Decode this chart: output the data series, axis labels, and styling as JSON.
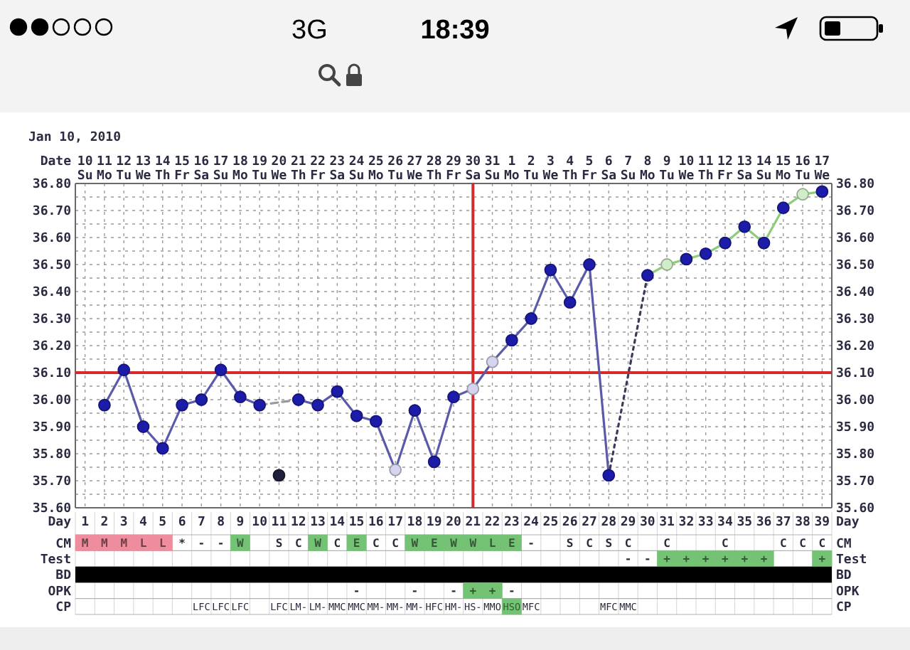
{
  "chart_data": [
    {
      "type": "line",
      "title": "Jan 10, 2010",
      "xlabel": "Day",
      "x2label": "Date",
      "xlim": [
        0.5,
        39.5
      ],
      "xticks": [
        1,
        2,
        3,
        4,
        5,
        6,
        7,
        8,
        9,
        10,
        11,
        12,
        13,
        14,
        15,
        16,
        17,
        18,
        19,
        20,
        21,
        22,
        23,
        24,
        25,
        26,
        27,
        28,
        29,
        30,
        31,
        32,
        33,
        34,
        35,
        36,
        37,
        38,
        39
      ],
      "x2lim": [
        "2010-01-09T12:00",
        "2010-02-17T12:00"
      ],
      "x2ticks": [
        {
          "value": "2010-01-10",
          "label": "10\nSu"
        },
        {
          "value": "2010-01-11",
          "label": "11\nMo"
        },
        {
          "value": "2010-01-12",
          "label": "12\nTu"
        },
        {
          "value": "2010-01-13",
          "label": "13\nWe"
        },
        {
          "value": "2010-01-14",
          "label": "14\nTh"
        },
        {
          "value": "2010-01-15",
          "label": "15\nFr"
        },
        {
          "value": "2010-01-16",
          "label": "16\nSa"
        },
        {
          "value": "2010-01-17",
          "label": "17\nSu"
        },
        {
          "value": "2010-01-18",
          "label": "18\nMo"
        },
        {
          "value": "2010-01-19",
          "label": "19\nTu"
        },
        {
          "value": "2010-01-20",
          "label": "20\nWe"
        },
        {
          "value": "2010-01-21",
          "label": "21\nTh"
        },
        {
          "value": "2010-01-22",
          "label": "22\nFr"
        },
        {
          "value": "2010-01-23",
          "label": "23\nSa"
        },
        {
          "value": "2010-01-24",
          "label": "24\nSu"
        },
        {
          "value": "2010-01-25",
          "label": "25\nMo"
        },
        {
          "value": "2010-01-26",
          "label": "26\nTu"
        },
        {
          "value": "2010-01-27",
          "label": "27\nWe"
        },
        {
          "value": "2010-01-28",
          "label": "28\nTh"
        },
        {
          "value": "2010-01-29",
          "label": "29\nFr"
        },
        {
          "value": "2010-01-30",
          "label": "30\nSa"
        },
        {
          "value": "2010-01-31",
          "label": "31\nSu"
        },
        {
          "value": "2010-02-01",
          "label": "1\nMo"
        },
        {
          "value": "2010-02-02",
          "label": "2\nTu"
        },
        {
          "value": "2010-02-03",
          "label": "3\nWe"
        },
        {
          "value": "2010-02-04",
          "label": "4\nTh"
        },
        {
          "value": "2010-02-05",
          "label": "5\nFr"
        },
        {
          "value": "2010-02-06",
          "label": "6\nSa"
        },
        {
          "value": "2010-02-07",
          "label": "7\nSu"
        },
        {
          "value": "2010-02-08",
          "label": "8\nMo"
        },
        {
          "value": "2010-02-09",
          "label": "9\nTu"
        },
        {
          "value": "2010-02-10",
          "label": "10\nWe"
        },
        {
          "value": "2010-02-11",
          "label": "11\nTh"
        },
        {
          "value": "2010-02-12",
          "label": "12\nFr"
        },
        {
          "value": "2010-02-13",
          "label": "13\nSa"
        },
        {
          "value": "2010-02-14",
          "label": "14\nSu"
        },
        {
          "value": "2010-02-15",
          "label": "15\nMo"
        },
        {
          "value": "2010-02-16",
          "label": "16\nTu"
        },
        {
          "value": "2010-02-17",
          "label": "17\nWe"
        }
      ],
      "ylim": [
        35.6,
        36.8
      ],
      "yticks": [
        {
          "value": 35.6,
          "label": "35.60"
        },
        {
          "value": 35.65,
          "label": null
        },
        {
          "value": 35.7,
          "label": "35.70"
        },
        {
          "value": 35.75,
          "label": null
        },
        {
          "value": 35.8,
          "label": "35.80"
        },
        {
          "value": 35.85,
          "label": null
        },
        {
          "value": 35.9,
          "label": "35.90"
        },
        {
          "value": 35.95,
          "label": null
        },
        {
          "value": 36.0,
          "label": "36.00"
        },
        {
          "value": 36.05,
          "label": null
        },
        {
          "value": 36.1,
          "label": "36.10"
        },
        {
          "value": 36.15,
          "label": null
        },
        {
          "value": 36.2,
          "label": "36.20"
        },
        {
          "value": 36.25,
          "label": null
        },
        {
          "value": 36.3,
          "label": "36.30"
        },
        {
          "value": 36.35,
          "label": null
        },
        {
          "value": 36.4,
          "label": "36.40"
        },
        {
          "value": 36.45,
          "label": null
        },
        {
          "value": 36.5,
          "label": "36.50"
        },
        {
          "value": 36.55,
          "label": null
        },
        {
          "value": 36.6,
          "label": "36.60"
        },
        {
          "value": 36.65,
          "label": null
        },
        {
          "value": 36.7,
          "label": "36.70"
        },
        {
          "value": 36.75,
          "label": null
        },
        {
          "value": 36.8,
          "label": "36.80"
        }
      ],
      "y2lim": [
        35.6,
        36.8
      ],
      "y2ticks": [
        {
          "value": 35.6,
          "label": "35.60"
        },
        {
          "value": 35.65,
          "label": null
        },
        {
          "value": 35.7,
          "label": "35.70"
        },
        {
          "value": 35.75,
          "label": null
        },
        {
          "value": 35.8,
          "label": "35.80"
        },
        {
          "value": 35.85,
          "label": null
        },
        {
          "value": 35.9,
          "label": "35.90"
        },
        {
          "value": 35.95,
          "label": null
        },
        {
          "value": 36.0,
          "label": "36.00"
        },
        {
          "value": 36.05,
          "label": null
        },
        {
          "value": 36.1,
          "label": "36.10"
        },
        {
          "value": 36.15,
          "label": null
        },
        {
          "value": 36.2,
          "label": "36.20"
        },
        {
          "value": 36.25,
          "label": null
        },
        {
          "value": 36.3,
          "label": "36.30"
        },
        {
          "value": 36.35,
          "label": null
        },
        {
          "value": 36.4,
          "label": "36.40"
        },
        {
          "value": 36.45,
          "label": null
        },
        {
          "value": 36.5,
          "label": "36.50"
        },
        {
          "value": 36.55,
          "label": null
        },
        {
          "value": 36.6,
          "label": "36.60"
        },
        {
          "value": 36.65,
          "label": null
        },
        {
          "value": 36.7,
          "label": "36.70"
        },
        {
          "value": 36.75,
          "label": null
        },
        {
          "value": 36.8,
          "label": "36.80"
        }
      ],
      "grid": true,
      "ref_lines": [
        {
          "axis": "y",
          "value": 36.1,
          "color": "#d42c2c"
        },
        {
          "axis": "x",
          "value": 21,
          "color": "#d42c2c"
        }
      ],
      "annotations": [
        "3G",
        "18:39"
      ],
      "series": [
        {
          "type": "line",
          "color": "#5a5aaa",
          "x": [
            2,
            3,
            4,
            5,
            6,
            7,
            8,
            9,
            10,
            11,
            12,
            13,
            14,
            15,
            16,
            17,
            18,
            19,
            20,
            21,
            22,
            23,
            24,
            25,
            26,
            27,
            28
          ],
          "values": [
            35.98,
            36.11,
            35.9,
            35.82,
            35.98,
            36.0,
            36.11,
            36.01,
            35.98,
            null,
            36.0,
            35.98,
            36.03,
            35.94,
            35.92,
            35.74,
            35.96,
            35.77,
            36.01,
            36.04,
            36.14,
            36.22,
            36.3,
            36.48,
            36.36,
            36.5,
            35.72
          ]
        },
        {
          "type": "line",
          "color": "#9a9a9a",
          "line_style": "dashed",
          "x": [
            10,
            12
          ],
          "values": [
            35.98,
            36.0
          ]
        },
        {
          "type": "line",
          "color": "#3a3a5a",
          "line_style": "dotted",
          "x": [
            28,
            30
          ],
          "values": [
            35.72,
            36.46
          ]
        },
        {
          "type": "line",
          "color": "#8ccc7a",
          "x": [
            30,
            31,
            32,
            33,
            34,
            35,
            36,
            37,
            38,
            39
          ],
          "values": [
            36.46,
            36.5,
            36.52,
            36.54,
            36.58,
            36.64,
            36.58,
            36.71,
            36.76,
            36.77
          ]
        },
        {
          "type": "scatter",
          "color": "#1c1ca8",
          "marker": "circle",
          "x": [
            2,
            3,
            4,
            5,
            6,
            7,
            8,
            9,
            10,
            12,
            13,
            14,
            15,
            16,
            18,
            19,
            20,
            23,
            24,
            25,
            26,
            27,
            28,
            30,
            32,
            33,
            34,
            35,
            36,
            37,
            39
          ],
          "values": [
            35.98,
            36.11,
            35.9,
            35.82,
            35.98,
            36.0,
            36.11,
            36.01,
            35.98,
            36.0,
            35.98,
            36.03,
            35.94,
            35.92,
            35.96,
            35.77,
            36.01,
            36.22,
            36.3,
            36.48,
            36.36,
            36.5,
            35.72,
            36.46,
            36.52,
            36.54,
            36.58,
            36.64,
            36.58,
            36.71,
            36.77
          ]
        },
        {
          "type": "scatter",
          "color": "#d4d4ee",
          "marker": "circle",
          "x": [
            17,
            21,
            22
          ],
          "values": [
            35.74,
            36.04,
            36.14
          ]
        },
        {
          "type": "scatter",
          "color": "#d0ecc8",
          "marker": "circle",
          "x": [
            31,
            38
          ],
          "values": [
            36.5,
            36.76
          ]
        },
        {
          "type": "scatter",
          "color": "#20203a",
          "marker": "circle",
          "x": [
            11
          ],
          "values": [
            35.72
          ]
        }
      ]
    },
    {
      "type": "other",
      "y_categories": [
        "CM",
        "Test",
        "BD",
        "OPK",
        "CP"
      ],
      "y2_categories": [
        "CM",
        "Test",
        "BD",
        "OPK",
        "CP"
      ],
      "cell_labels": [
        [
          "M",
          "M",
          "M",
          "L",
          "L",
          "*",
          "-",
          "-",
          "W",
          null,
          "S",
          "C",
          "W",
          "C",
          "E",
          "C",
          "C",
          "W",
          "E",
          "W",
          "W",
          "L",
          "E",
          "-",
          null,
          "S",
          "C",
          "S",
          "C",
          null,
          "C",
          null,
          null,
          "C",
          null,
          null,
          "C",
          "C",
          "C"
        ],
        [
          null,
          null,
          null,
          null,
          null,
          null,
          null,
          null,
          null,
          null,
          null,
          null,
          null,
          null,
          null,
          null,
          null,
          null,
          null,
          null,
          null,
          null,
          null,
          null,
          null,
          null,
          null,
          null,
          "-",
          "-",
          "+",
          "+",
          "+",
          "+",
          "+",
          "+",
          null,
          null,
          "+"
        ],
        [
          null,
          null,
          null,
          null,
          null,
          null,
          null,
          null,
          null,
          null,
          null,
          null,
          null,
          null,
          null,
          null,
          null,
          null,
          null,
          null,
          null,
          null,
          null,
          null,
          null,
          null,
          null,
          null,
          null,
          null,
          null,
          null,
          null,
          null,
          null,
          null,
          null,
          null,
          null
        ],
        [
          null,
          null,
          null,
          null,
          null,
          null,
          null,
          null,
          null,
          null,
          null,
          null,
          null,
          null,
          "-",
          null,
          null,
          "-",
          null,
          "-",
          "+",
          "+",
          "-",
          null,
          null,
          null,
          null,
          null,
          null,
          null,
          null,
          null,
          null,
          null,
          null,
          null,
          null,
          null,
          null
        ],
        [
          null,
          null,
          null,
          null,
          null,
          null,
          "LFC",
          "LFC",
          "LFC",
          null,
          "LFC",
          "LM-",
          "LM-",
          "MMC",
          "MMC",
          "MM-",
          "MM-",
          "MM-",
          "HFC",
          "HM-",
          "HS-",
          "MMO",
          "HSO",
          "MFC",
          null,
          null,
          null,
          "MFC",
          "MMC",
          null,
          null,
          null,
          null,
          null,
          null,
          null,
          null,
          null,
          null
        ]
      ],
      "colors": [
        [
          "#ef8d9e",
          "#ef8d9e",
          "#ef8d9e",
          "#ef8d9e",
          "#ef8d9e",
          null,
          null,
          null,
          "#74c274",
          null,
          null,
          null,
          "#74c274",
          null,
          "#74c274",
          null,
          null,
          "#74c274",
          "#74c274",
          "#74c274",
          "#74c274",
          "#74c274",
          "#74c274",
          null,
          null,
          null,
          null,
          null,
          null,
          null,
          null,
          null,
          null,
          null,
          null,
          null,
          null,
          null,
          null
        ],
        [
          null,
          null,
          null,
          null,
          null,
          null,
          null,
          null,
          null,
          null,
          null,
          null,
          null,
          null,
          null,
          null,
          null,
          null,
          null,
          null,
          null,
          null,
          null,
          null,
          null,
          null,
          null,
          null,
          null,
          null,
          "#74c274",
          "#74c274",
          "#74c274",
          "#74c274",
          "#74c274",
          "#74c274",
          null,
          null,
          "#74c274"
        ],
        [
          "#000000",
          "#000000",
          "#000000",
          "#000000",
          "#000000",
          "#000000",
          "#000000",
          "#000000",
          "#000000",
          "#000000",
          "#000000",
          "#000000",
          "#000000",
          "#000000",
          "#000000",
          "#000000",
          "#000000",
          "#000000",
          "#000000",
          "#000000",
          "#000000",
          "#000000",
          "#000000",
          "#000000",
          "#000000",
          "#000000",
          "#000000",
          "#000000",
          "#000000",
          "#000000",
          "#000000",
          "#000000",
          "#000000",
          "#000000",
          "#000000",
          "#000000",
          "#000000",
          "#000000",
          "#000000"
        ],
        [
          null,
          null,
          null,
          null,
          null,
          null,
          null,
          null,
          null,
          null,
          null,
          null,
          null,
          null,
          null,
          null,
          null,
          null,
          null,
          null,
          "#74c274",
          "#74c274",
          null,
          null,
          null,
          null,
          null,
          null,
          null,
          null,
          null,
          null,
          null,
          null,
          null,
          null,
          null,
          null,
          null
        ],
        [
          null,
          null,
          null,
          null,
          null,
          null,
          null,
          null,
          null,
          null,
          null,
          null,
          null,
          null,
          null,
          null,
          null,
          null,
          null,
          null,
          null,
          null,
          "#74c274",
          null,
          null,
          null,
          null,
          null,
          null,
          null,
          null,
          null,
          null,
          null,
          null,
          null,
          null,
          null,
          null
        ]
      ]
    }
  ]
}
